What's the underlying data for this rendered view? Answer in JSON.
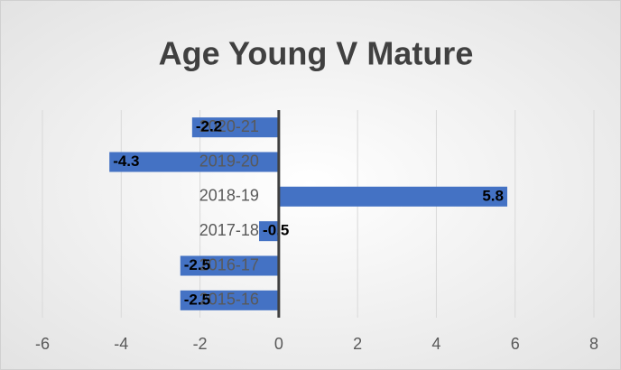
{
  "chart_data": {
    "type": "bar",
    "orientation": "horizontal",
    "title": "Age Young V Mature",
    "categories": [
      "2020-21",
      "2019-20",
      "2018-19",
      "2017-18",
      "2016-17",
      "2015-16"
    ],
    "values": [
      -2.2,
      -4.3,
      5.8,
      -0.5,
      -2.5,
      -2.5
    ],
    "color": "#4472c4",
    "xlim": [
      -6,
      8
    ],
    "xticks": [
      -6,
      -4,
      -2,
      0,
      2,
      4,
      6,
      8
    ],
    "grid": true
  }
}
